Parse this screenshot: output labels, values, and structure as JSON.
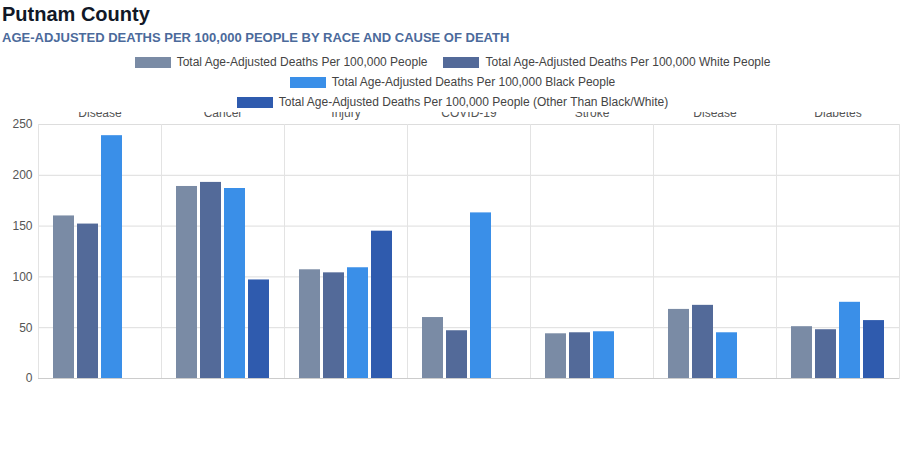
{
  "chart_data": {
    "type": "bar",
    "title": "Putnam County",
    "subtitle": "AGE-ADJUSTED DEATHS PER 100,000 PEOPLE BY RACE AND CAUSE OF DEATH",
    "categories": [
      "Heart Disease",
      "Cancer",
      "Unintentional Injury",
      "COVID-19",
      "Stroke",
      "Chronic Lower Respiratory Disease",
      "Diabetes"
    ],
    "series": [
      {
        "name": "Total Age-Adjusted Deaths Per 100,000 People",
        "color": "#7a8ba5",
        "values": [
          160,
          189,
          107,
          60,
          44,
          68,
          51
        ]
      },
      {
        "name": "Total Age-Adjusted Deaths Per 100,000 White People",
        "color": "#536a99",
        "values": [
          152,
          193,
          104,
          47,
          45,
          72,
          48
        ]
      },
      {
        "name": "Total Age-Adjusted Deaths Per 100,000 Black People",
        "color": "#3a8fe8",
        "values": [
          239,
          187,
          109,
          163,
          46,
          45,
          75
        ]
      },
      {
        "name": "Total Age-Adjusted Deaths Per 100,000 People (Other Than Black/White)",
        "color": "#2f5bae",
        "values": [
          null,
          97,
          145,
          null,
          null,
          null,
          57
        ]
      }
    ],
    "ylim": [
      0,
      250
    ],
    "yticks": [
      0,
      50,
      100,
      150,
      200,
      250
    ],
    "grid": true,
    "legend": "top"
  }
}
